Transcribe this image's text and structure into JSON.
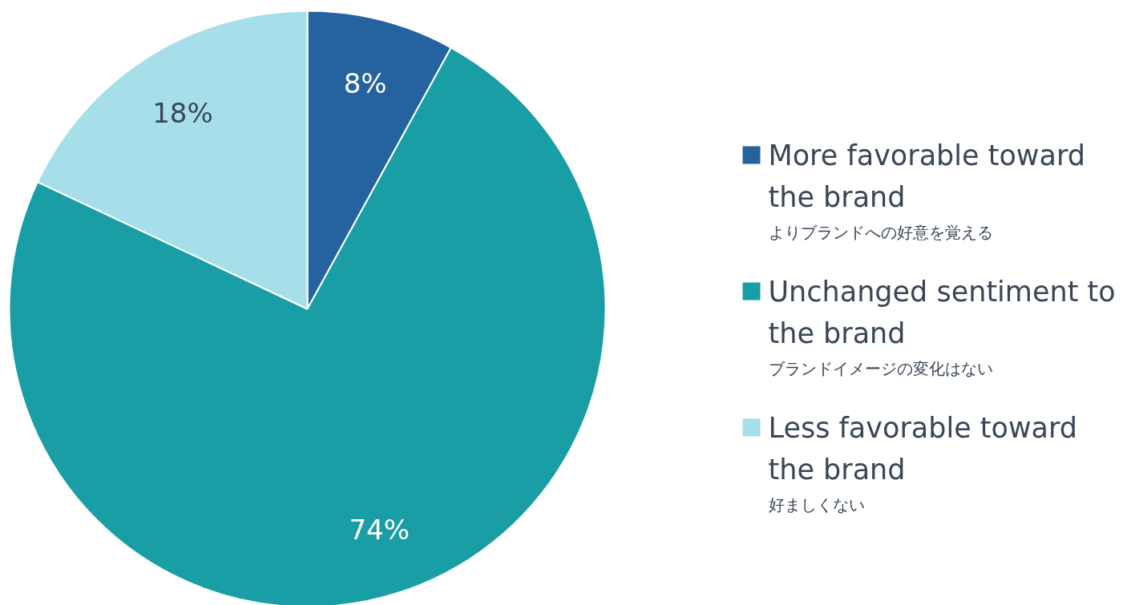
{
  "chart_data": {
    "type": "pie",
    "categories": [
      "More favorable toward the brand\nよりブランドへの好意を覚える",
      "Unchanged sentiment to the brand\nブランドイメージの変化はない",
      "Less favorable toward the brand\n好ましくない"
    ],
    "values": [
      8,
      74,
      18
    ],
    "colors": [
      "#2462a0",
      "#199ea5",
      "#a6dfea"
    ],
    "value_labels": [
      "8%",
      "74%",
      "18%"
    ],
    "legend": "right"
  }
}
